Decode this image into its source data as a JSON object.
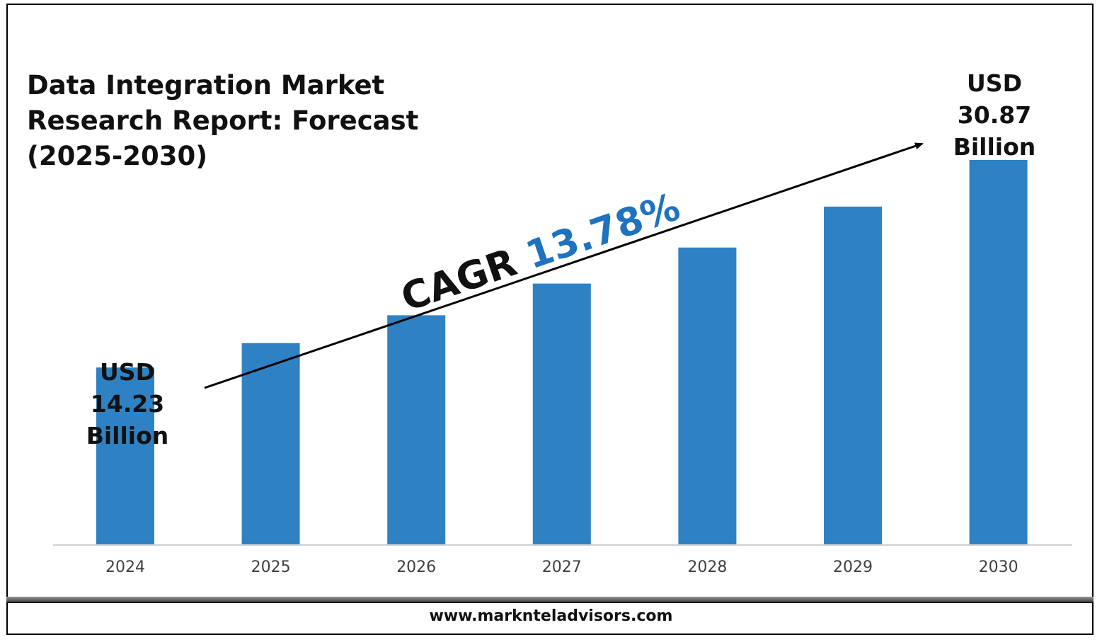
{
  "title": "Data Integration Market\nResearch Report: Forecast\n(2025-2030)",
  "footer": "www.marknteladvisors.com",
  "cagr": {
    "prefix": "CAGR",
    "value": "13.78%"
  },
  "annotations": {
    "start": {
      "line1": "USD",
      "line2": "14.23",
      "line3": "Billion"
    },
    "end": {
      "line1": "USD",
      "line2": "30.87",
      "line3": "Billion"
    }
  },
  "colors": {
    "bar": "#2E82C4",
    "cagr_value": "#1F73BE",
    "axis": "#D0D0D0",
    "tick": "#404040"
  },
  "chart_data": {
    "type": "bar",
    "categories": [
      "2024",
      "2025",
      "2026",
      "2027",
      "2028",
      "2029",
      "2030"
    ],
    "values": [
      14.23,
      16.19,
      18.42,
      20.96,
      23.85,
      27.13,
      30.87
    ],
    "title": "Data Integration Market Research Report: Forecast (2025-2030)",
    "xlabel": "",
    "ylabel": "",
    "ylim": [
      0,
      31
    ],
    "grid": false,
    "legend": "none"
  }
}
